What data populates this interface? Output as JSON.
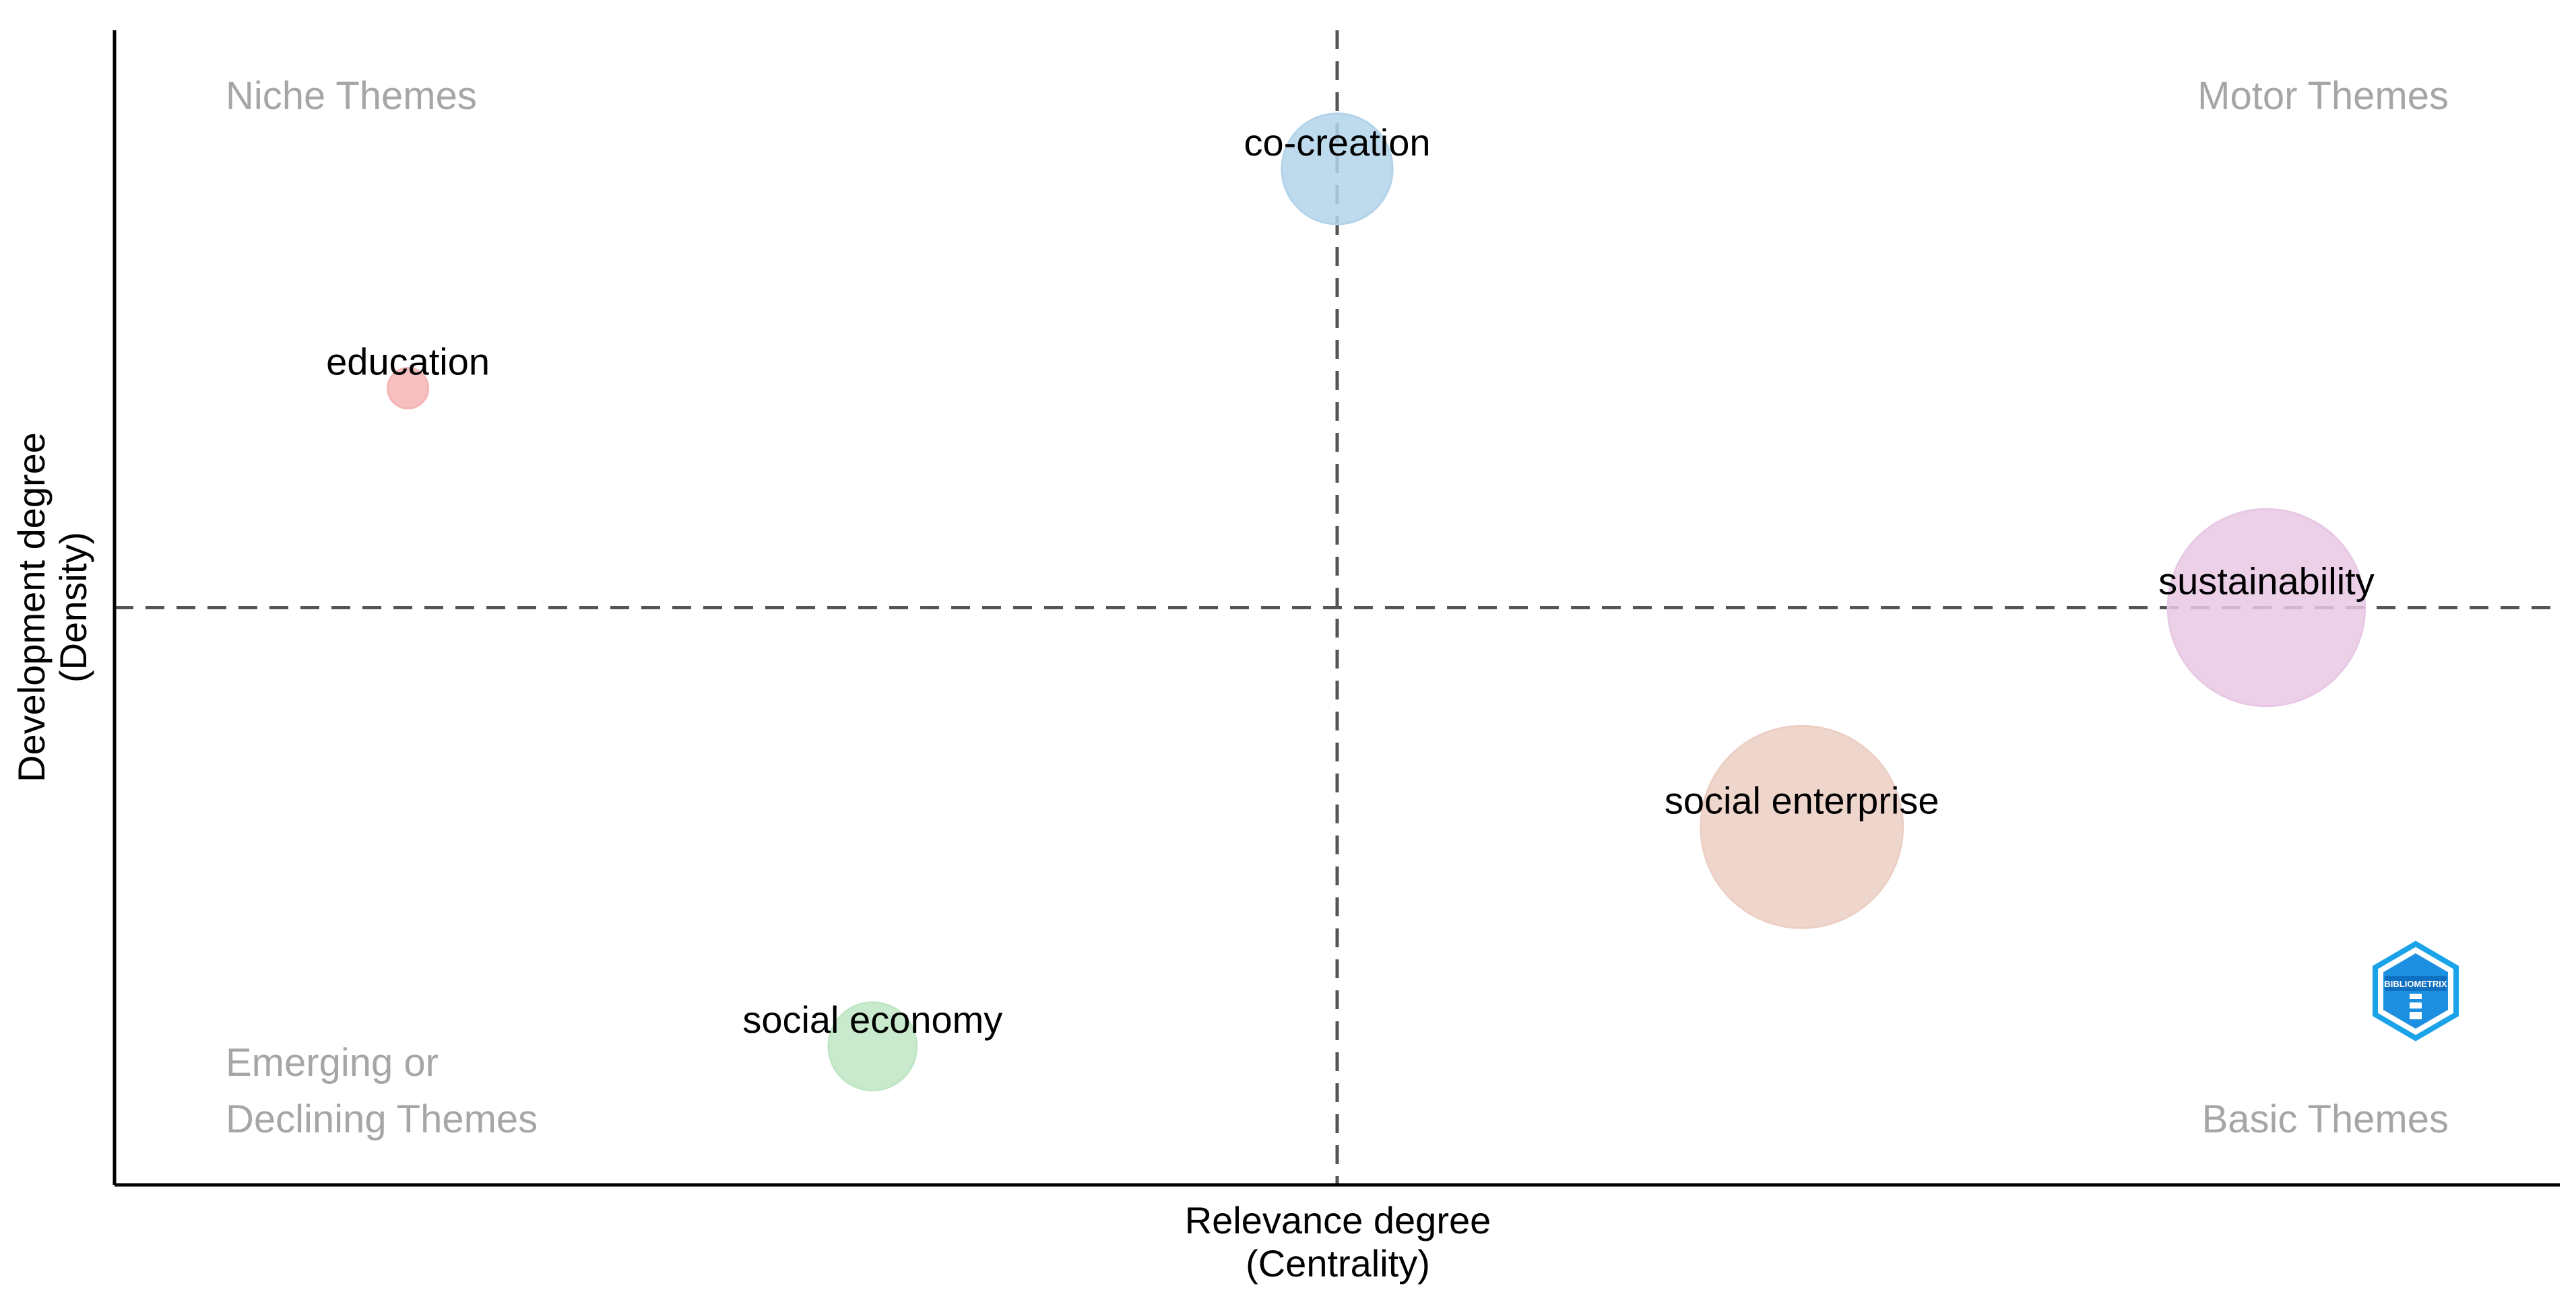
{
  "chart_data": {
    "type": "scatter",
    "subtype": "bubble",
    "title": "",
    "xlabel": [
      "Relevance degree",
      "(Centrality)"
    ],
    "ylabel": [
      "Development degree",
      "(Density)"
    ],
    "xlim": [
      0,
      100
    ],
    "ylim": [
      0,
      100
    ],
    "x_reference": 50,
    "y_reference": 50,
    "grid": false,
    "legend": "none",
    "quadrants": {
      "top_left": [
        "Niche Themes"
      ],
      "top_right": [
        "Motor Themes"
      ],
      "bottom_left": [
        "Emerging or",
        "Declining Themes"
      ],
      "bottom_right": [
        "Basic Themes"
      ]
    },
    "points": [
      {
        "label": "co-creation",
        "x": 50.0,
        "y": 88.0,
        "size": 30,
        "color": "#b3d3ea"
      },
      {
        "label": "education",
        "x": 12.0,
        "y": 69.0,
        "size": 4,
        "color": "#f5b5b5"
      },
      {
        "label": "sustainability",
        "x": 88.0,
        "y": 50.0,
        "size": 95,
        "color": "#e8c8e4"
      },
      {
        "label": "social enterprise",
        "x": 69.0,
        "y": 31.0,
        "size": 100,
        "color": "#eccfc4"
      },
      {
        "label": "social economy",
        "x": 31.0,
        "y": 12.0,
        "size": 19,
        "color": "#bfe6c4"
      }
    ],
    "logo_text": "BIBLIOMETRIX"
  }
}
